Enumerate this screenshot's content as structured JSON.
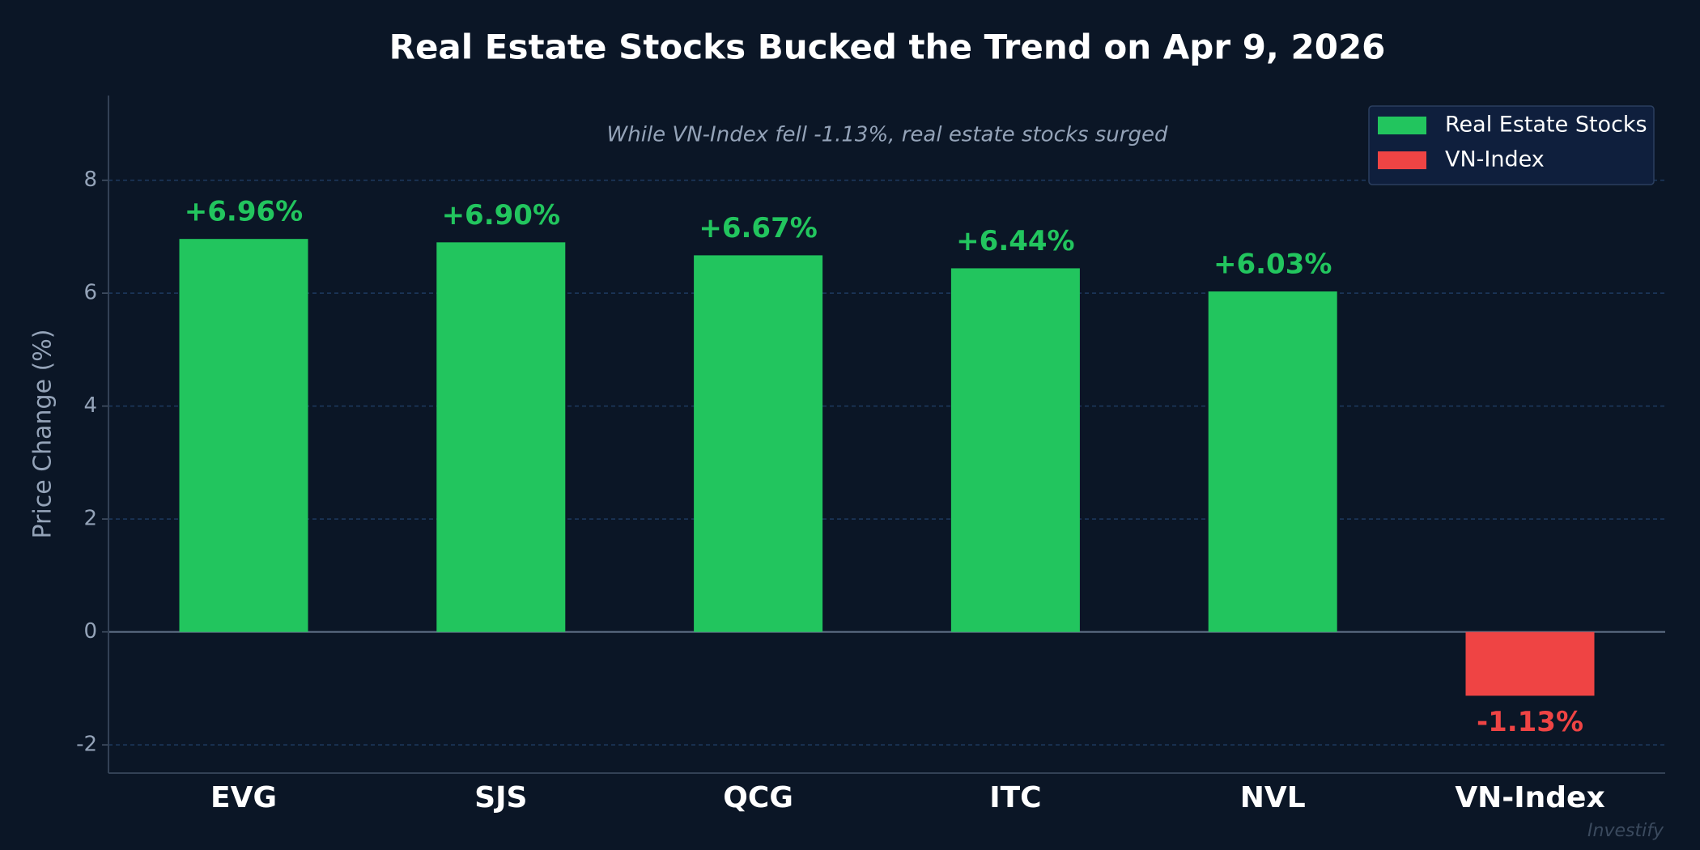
{
  "chart_data": {
    "type": "bar",
    "title": "Real Estate Stocks Bucked the Trend on Apr 9, 2026",
    "annotation": "While VN-Index fell -1.13%, real estate stocks surged",
    "y_label": "Price Change (%)",
    "watermark": "Investify",
    "categories": [
      "EVG",
      "SJS",
      "QCG",
      "ITC",
      "NVL",
      "VN-Index"
    ],
    "series": [
      {
        "name": "Real Estate Stocks",
        "color": "#22c55e",
        "values": [
          6.96,
          6.9,
          6.67,
          6.44,
          6.03,
          null
        ],
        "value_labels": [
          "+6.96%",
          "+6.90%",
          "+6.67%",
          "+6.44%",
          "+6.03%",
          null
        ]
      },
      {
        "name": "VN-Index",
        "color": "#ef4444",
        "values": [
          null,
          null,
          null,
          null,
          null,
          -1.13
        ],
        "value_labels": [
          null,
          null,
          null,
          null,
          null,
          "-1.13%"
        ]
      }
    ],
    "ylim": [
      -2.5,
      9.5
    ],
    "yticks": [
      -2,
      0,
      2,
      4,
      6,
      8
    ],
    "grid": true,
    "legend": "upper right"
  }
}
